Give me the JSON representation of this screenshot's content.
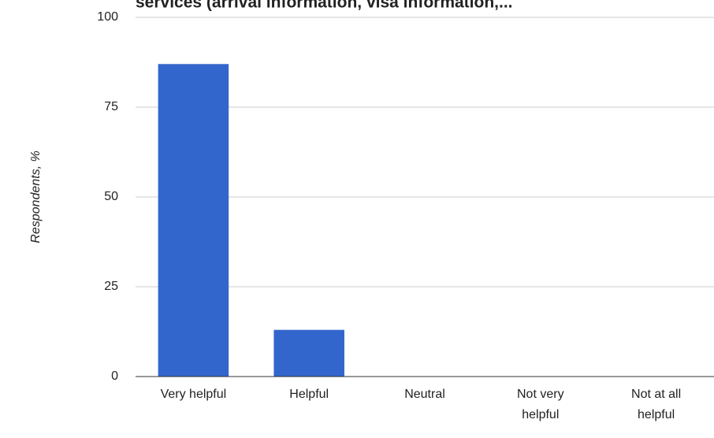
{
  "chart_data": {
    "type": "bar",
    "title": "services (arrival information, visa information,...",
    "y_label": "Respondents, %",
    "categories": [
      "Very helpful",
      "Helpful",
      "Neutral",
      "Not very helpful",
      "Not at all helpful"
    ],
    "values": [
      87,
      13,
      0,
      0,
      0
    ],
    "color": "#3366cc",
    "ylim": [
      0,
      100
    ],
    "yticks": [
      0,
      25,
      50,
      75,
      100
    ],
    "grid": true
  }
}
